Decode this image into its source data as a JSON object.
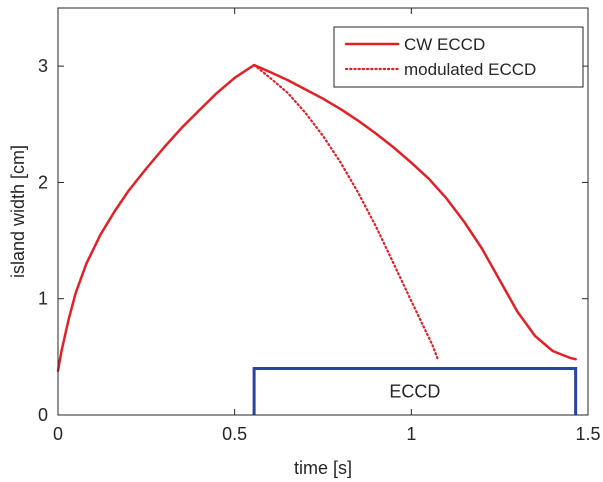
{
  "chart_data": {
    "type": "line",
    "xlabel": "time [s]",
    "ylabel": "island width [cm]",
    "xlim": [
      0,
      1.5
    ],
    "ylim": [
      0,
      3.5
    ],
    "xticks": [
      0,
      0.5,
      1,
      1.5
    ],
    "xtick_labels": [
      "0",
      "0.5",
      "1",
      "1.5"
    ],
    "yticks": [
      0,
      1,
      2,
      3
    ],
    "ytick_labels": [
      "0",
      "1",
      "2",
      "3"
    ],
    "grid": false,
    "legend_position": "top-right",
    "series": [
      {
        "name": "CW ECCD",
        "style": "solid",
        "color": "#e32026",
        "points": [
          [
            0,
            0.38
          ],
          [
            0.01,
            0.55
          ],
          [
            0.03,
            0.82
          ],
          [
            0.05,
            1.05
          ],
          [
            0.08,
            1.3
          ],
          [
            0.12,
            1.55
          ],
          [
            0.16,
            1.75
          ],
          [
            0.2,
            1.93
          ],
          [
            0.25,
            2.12
          ],
          [
            0.3,
            2.3
          ],
          [
            0.35,
            2.47
          ],
          [
            0.4,
            2.62
          ],
          [
            0.45,
            2.77
          ],
          [
            0.5,
            2.9
          ],
          [
            0.555,
            3.01
          ],
          [
            0.6,
            2.95
          ],
          [
            0.65,
            2.88
          ],
          [
            0.7,
            2.8
          ],
          [
            0.75,
            2.72
          ],
          [
            0.8,
            2.63
          ],
          [
            0.85,
            2.53
          ],
          [
            0.9,
            2.42
          ],
          [
            0.95,
            2.3
          ],
          [
            1.0,
            2.17
          ],
          [
            1.05,
            2.03
          ],
          [
            1.1,
            1.86
          ],
          [
            1.15,
            1.66
          ],
          [
            1.2,
            1.43
          ],
          [
            1.25,
            1.16
          ],
          [
            1.3,
            0.89
          ],
          [
            1.35,
            0.68
          ],
          [
            1.4,
            0.55
          ],
          [
            1.45,
            0.49
          ],
          [
            1.465,
            0.48
          ]
        ]
      },
      {
        "name": "modulated ECCD",
        "style": "dotted",
        "color": "#e32026",
        "points": [
          [
            0.555,
            3.01
          ],
          [
            0.6,
            2.9
          ],
          [
            0.65,
            2.77
          ],
          [
            0.7,
            2.6
          ],
          [
            0.75,
            2.4
          ],
          [
            0.8,
            2.17
          ],
          [
            0.85,
            1.91
          ],
          [
            0.9,
            1.62
          ],
          [
            0.95,
            1.3
          ],
          [
            1.0,
            0.98
          ],
          [
            1.03,
            0.79
          ],
          [
            1.06,
            0.6
          ],
          [
            1.075,
            0.48
          ]
        ]
      }
    ],
    "annotation": {
      "label": "ECCD",
      "x_start": 0.555,
      "x_end": 1.465,
      "y_top": 0.4,
      "color": "#2944a6"
    }
  }
}
